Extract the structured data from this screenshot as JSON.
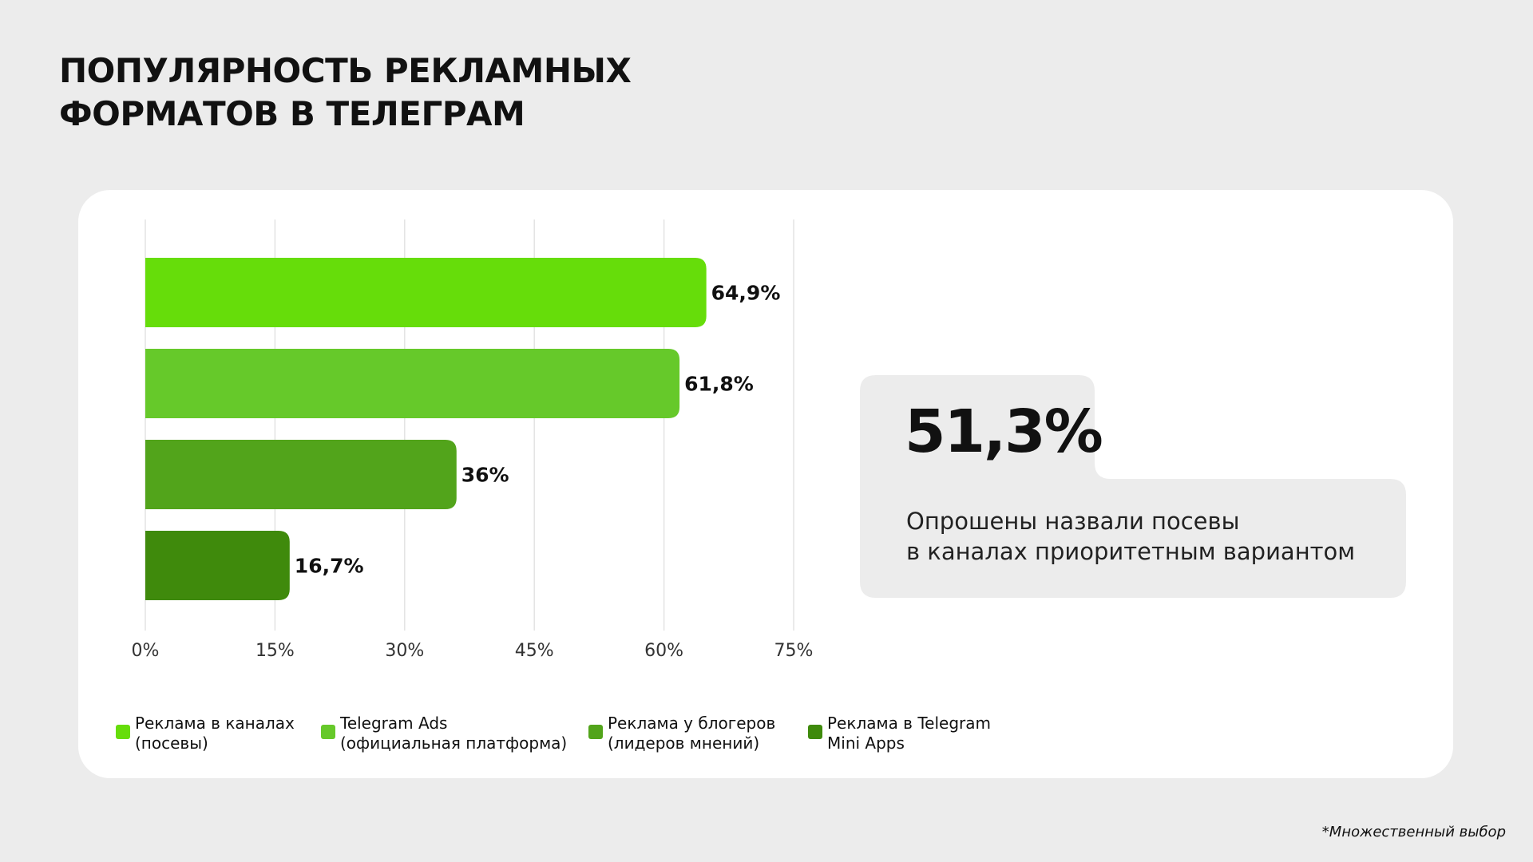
{
  "chart_data": {
    "type": "hbar",
    "title": "ПОПУЛЯРНОСТЬ РЕКЛАМНЫХ\nФОРМАТОВ В ТЕЛЕГРАМ",
    "series": [
      {
        "name": "Реклама в каналах\n(посевы)",
        "color": "#66dd0a",
        "values": [
          64.9
        ],
        "value_labels": [
          "64,9%"
        ]
      },
      {
        "name": "Telegram Ads\n(официальная платформа)",
        "color": "#66c92a",
        "values": [
          61.8
        ],
        "value_labels": [
          "61,8%"
        ]
      },
      {
        "name": "Реклама у блогеров\n(лидеров мнений)",
        "color": "#52a41b",
        "values": [
          36
        ],
        "value_labels": [
          "36%"
        ]
      },
      {
        "name": "Реклама в Telegram\nMini Apps",
        "color": "#3f8a0c",
        "values": [
          16.7
        ],
        "value_labels": [
          "16,7%"
        ]
      }
    ],
    "xlim": [
      0,
      75
    ],
    "xticks": [
      {
        "value": 0,
        "label": "0%"
      },
      {
        "value": 15,
        "label": "15%"
      },
      {
        "value": 30,
        "label": "30%"
      },
      {
        "value": 45,
        "label": "45%"
      },
      {
        "value": 60,
        "label": "60%"
      },
      {
        "value": 75,
        "label": "75%"
      }
    ],
    "grid": true,
    "annotation": {
      "headline": "51,3%",
      "text": "Опрошены назвали посевы\nв каналах приоритетным вариантом"
    },
    "note": "*Множественный выбор"
  }
}
